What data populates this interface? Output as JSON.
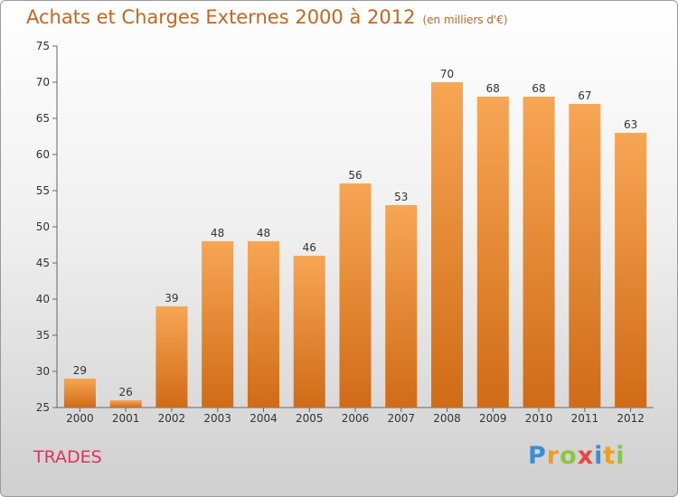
{
  "title": "Achats et Charges Externes 2000 à 2012",
  "title_unit": "(en milliers d'€)",
  "location": "TRADES",
  "brand": {
    "letters": [
      {
        "char": "P",
        "color": "#3a8fd4"
      },
      {
        "char": "r",
        "color": "#f39c1f"
      },
      {
        "char": "o",
        "color": "#8cc63f"
      },
      {
        "char": "x",
        "color": "#e8453c"
      },
      {
        "char": "i",
        "color": "#3a8fd4"
      },
      {
        "char": "t",
        "color": "#f39c1f"
      },
      {
        "char": "i",
        "color": "#8cc63f"
      }
    ]
  },
  "colors": {
    "bar_top": "#f7a654",
    "bar_bottom": "#d06b16",
    "title": "#c8641e",
    "location": "#e0335a"
  },
  "chart_data": {
    "type": "bar",
    "title": "Achats et Charges Externes 2000 à 2012",
    "subtitle": "(en milliers d'€)",
    "xlabel": "",
    "ylabel": "",
    "categories": [
      "2000",
      "2001",
      "2002",
      "2003",
      "2004",
      "2005",
      "2006",
      "2007",
      "2008",
      "2009",
      "2010",
      "2011",
      "2012"
    ],
    "values": [
      29,
      26,
      39,
      48,
      48,
      46,
      56,
      53,
      70,
      68,
      68,
      67,
      63
    ],
    "ylim": [
      25,
      75
    ],
    "yticks": [
      25,
      30,
      35,
      40,
      45,
      50,
      55,
      60,
      65,
      70,
      75
    ],
    "grid": false,
    "legend": "none"
  }
}
